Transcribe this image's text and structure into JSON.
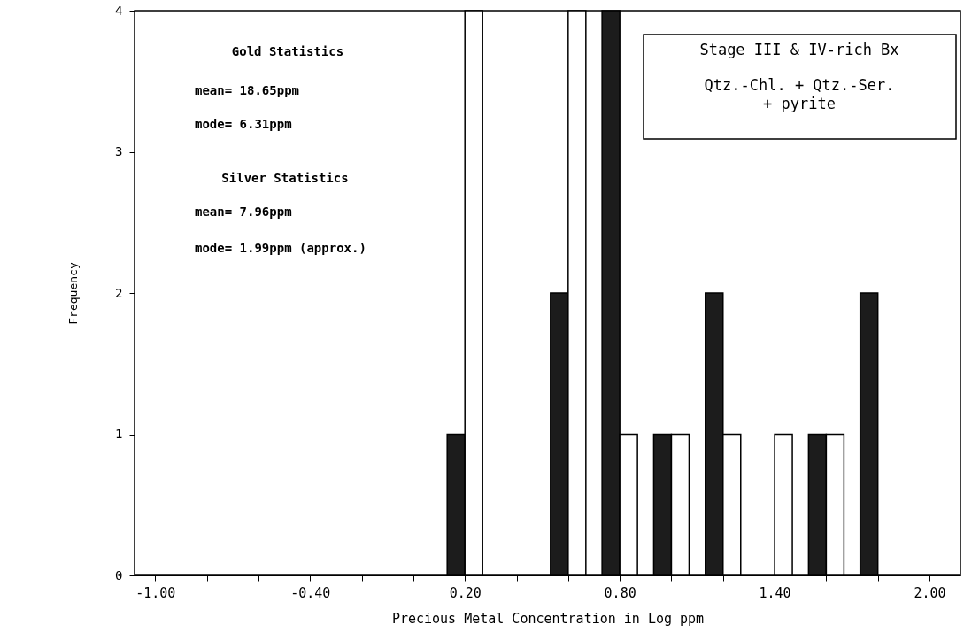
{
  "chart_data": {
    "type": "bar",
    "xlabel": "Precious Metal Concentration in Log ppm",
    "ylabel": "Frequency",
    "x": [
      0.2,
      0.6,
      0.8,
      1.0,
      1.2,
      1.4,
      1.6,
      1.8
    ],
    "series": [
      {
        "color": "#1c1c1c",
        "values": [
          1,
          2,
          4,
          1,
          2,
          0,
          1,
          2
        ]
      },
      {
        "color": "#ffffff",
        "values": [
          4,
          4,
          1,
          1,
          1,
          1,
          1,
          0
        ]
      }
    ],
    "xlim": [
      -1.08,
      2.12
    ],
    "xticks": [
      {
        "value": -1.0,
        "label": "-1.00"
      },
      {
        "value": -0.8,
        "label": null
      },
      {
        "value": -0.6,
        "label": null
      },
      {
        "value": -0.4,
        "label": "-0.40"
      },
      {
        "value": -0.2,
        "label": null
      },
      {
        "value": 0.0,
        "label": null
      },
      {
        "value": 0.2,
        "label": "0.20"
      },
      {
        "value": 0.4,
        "label": null
      },
      {
        "value": 0.6,
        "label": null
      },
      {
        "value": 0.8,
        "label": "0.80"
      },
      {
        "value": 1.0,
        "label": null
      },
      {
        "value": 1.2,
        "label": null
      },
      {
        "value": 1.4,
        "label": "1.40"
      },
      {
        "value": 1.6,
        "label": null
      },
      {
        "value": 1.8,
        "label": null
      },
      {
        "value": 2.0,
        "label": "2.00"
      }
    ],
    "ylim": [
      0,
      4
    ],
    "yticks": [
      0,
      1,
      2,
      3,
      4
    ],
    "grid": false,
    "annotations": [
      "Gold Statistics",
      "mean= 18.65ppm",
      "mode= 6.31ppm",
      "Silver Statistics",
      "mean= 7.96ppm",
      "mode= 1.99ppm (approx.)",
      "Stage III & IV-rich Bx",
      "Qtz.-Chl. + Qtz.-Ser. + pyrite"
    ]
  }
}
